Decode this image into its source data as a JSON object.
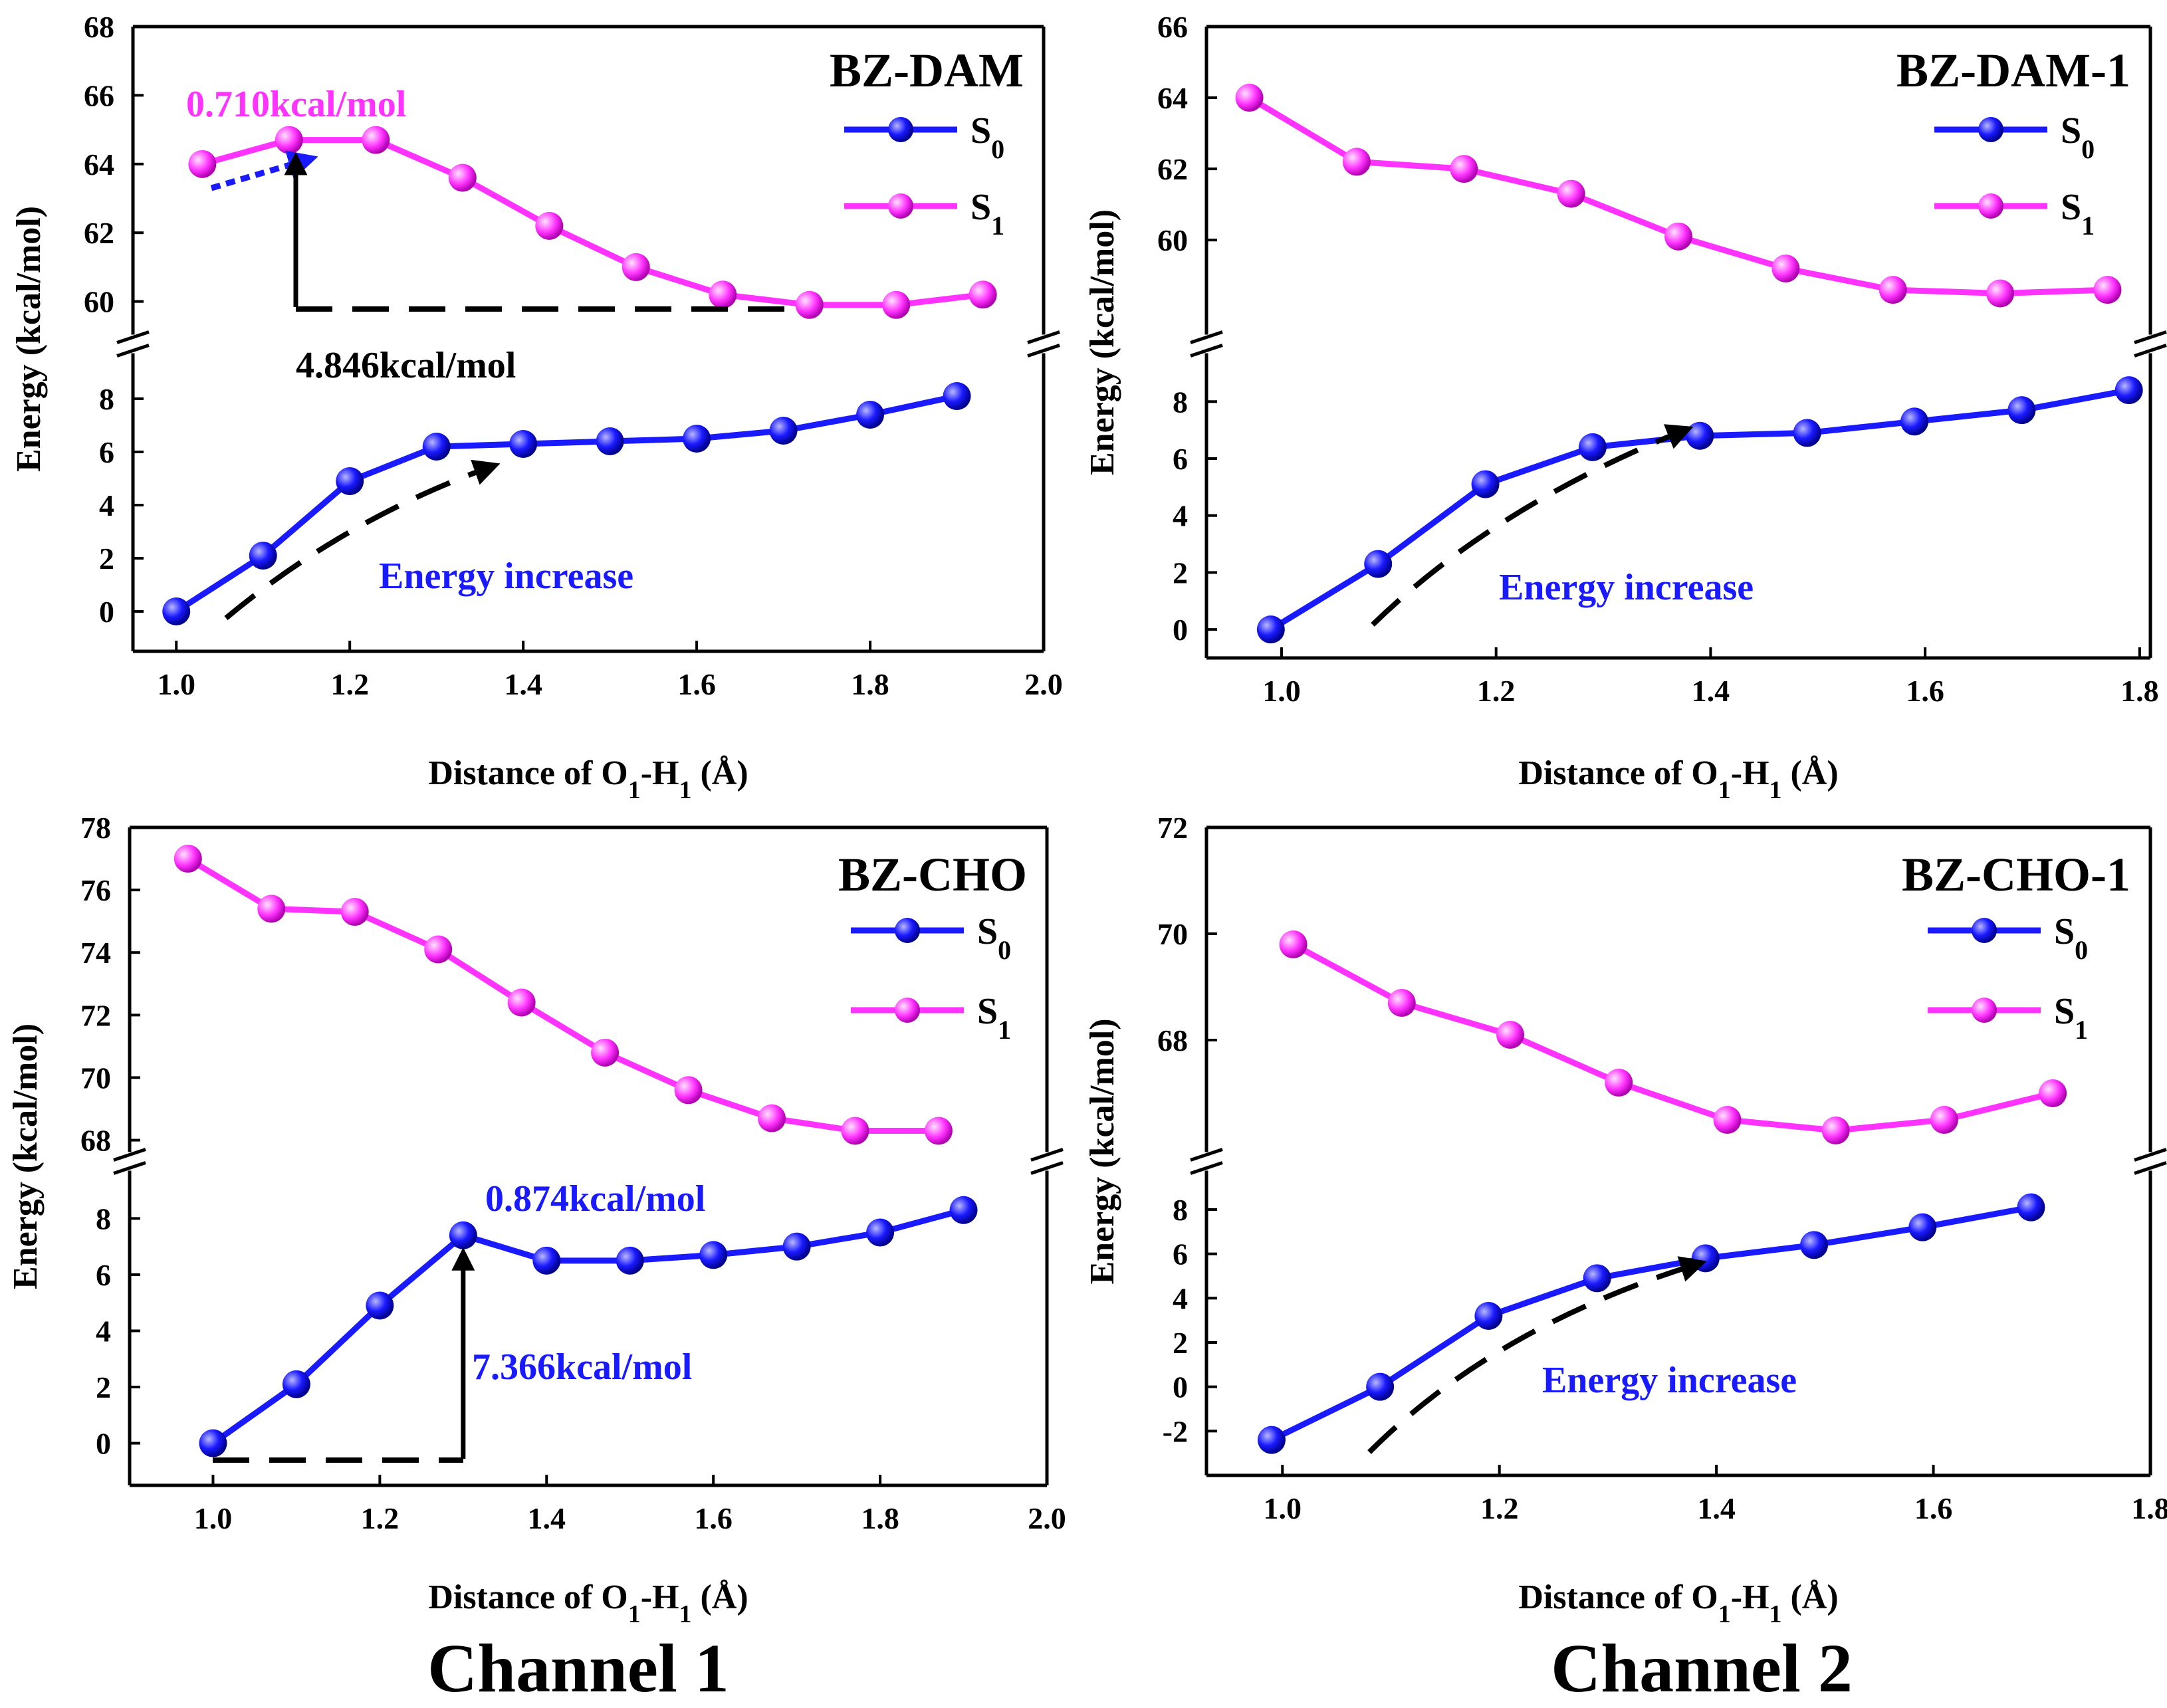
{
  "channel_labels": [
    "Channel 1",
    "Channel 2"
  ],
  "chart_data": [
    {
      "id": "bz-dam",
      "type": "line",
      "title": "BZ-DAM",
      "xlabel": "Distance of O1-H1 (Å)",
      "ylabel": "Energy (kcal/mol)",
      "xlim": [
        0.95,
        2.0
      ],
      "xticks": [
        1.0,
        1.2,
        1.4,
        1.6,
        1.8,
        2.0
      ],
      "xtick_labels": [
        "1.0",
        "1.2",
        "1.4",
        "1.6",
        "1.8",
        "2.0"
      ],
      "upper": {
        "ylim": [
          59.2,
          68
        ],
        "yticks": [
          60,
          62,
          64,
          66,
          68
        ],
        "ytick_labels": [
          "60",
          "62",
          "64",
          "66",
          "68"
        ]
      },
      "lower": {
        "ylim": [
          -1.5,
          9.5
        ],
        "yticks": [
          0,
          2,
          4,
          6,
          8
        ],
        "ytick_labels": [
          "0",
          "2",
          "4",
          "6",
          "8"
        ]
      },
      "series": [
        {
          "name": "S0",
          "color": "#1a1aff",
          "segment": "lower",
          "x": [
            1.0,
            1.1,
            1.2,
            1.3,
            1.4,
            1.5,
            1.6,
            1.7,
            1.8,
            1.9
          ],
          "values": [
            0.0,
            2.1,
            4.9,
            6.2,
            6.3,
            6.4,
            6.5,
            6.8,
            7.4,
            8.1
          ]
        },
        {
          "name": "S1",
          "color": "#ff33ff",
          "segment": "upper",
          "x": [
            1.03,
            1.13,
            1.23,
            1.33,
            1.43,
            1.53,
            1.63,
            1.73,
            1.83,
            1.93
          ],
          "values": [
            64.0,
            64.7,
            64.7,
            63.6,
            62.2,
            61.0,
            60.2,
            59.9,
            59.9,
            60.2
          ]
        }
      ],
      "annotations": [
        {
          "text": "0.710kcal/mol",
          "color": "#ff33ff"
        },
        {
          "text": "4.846kcal/mol",
          "color": "#000000"
        },
        {
          "text": "Energy increase",
          "color": "#1a1aff"
        }
      ]
    },
    {
      "id": "bz-dam-1",
      "type": "line",
      "title": "BZ-DAM-1",
      "xlabel": "Distance of O1-H1 (Å)",
      "ylabel": "Energy (kcal/mol)",
      "xlim": [
        0.93,
        1.81
      ],
      "xticks": [
        1.0,
        1.2,
        1.4,
        1.6,
        1.8
      ],
      "xtick_labels": [
        "1.0",
        "1.2",
        "1.4",
        "1.6",
        "1.8"
      ],
      "upper": {
        "ylim": [
          57.5,
          66
        ],
        "yticks": [
          60,
          62,
          64,
          66
        ],
        "ytick_labels": [
          "60",
          "62",
          "64",
          "66"
        ]
      },
      "lower": {
        "ylim": [
          -1.0,
          9.5
        ],
        "yticks": [
          0,
          2,
          4,
          6,
          8
        ],
        "ytick_labels": [
          "0",
          "2",
          "4",
          "6",
          "8"
        ]
      },
      "series": [
        {
          "name": "S0",
          "color": "#1a1aff",
          "segment": "lower",
          "x": [
            0.99,
            1.09,
            1.19,
            1.29,
            1.39,
            1.49,
            1.59,
            1.69,
            1.79
          ],
          "values": [
            0.0,
            2.3,
            5.1,
            6.4,
            6.8,
            6.9,
            7.3,
            7.7,
            8.4
          ]
        },
        {
          "name": "S1",
          "color": "#ff33ff",
          "segment": "upper",
          "x": [
            0.97,
            1.07,
            1.17,
            1.27,
            1.37,
            1.47,
            1.57,
            1.67,
            1.77
          ],
          "values": [
            64.0,
            62.2,
            62.0,
            61.3,
            60.1,
            59.2,
            58.6,
            58.5,
            58.6
          ]
        }
      ],
      "annotations": [
        {
          "text": "Energy increase",
          "color": "#1a1aff"
        }
      ]
    },
    {
      "id": "bz-cho",
      "type": "line",
      "title": "BZ-CHO",
      "xlabel": "Distance of O1-H1 (Å)",
      "ylabel": "Energy (kcal/mol)",
      "xlim": [
        0.9,
        2.0
      ],
      "xticks": [
        1.0,
        1.2,
        1.4,
        1.6,
        1.8,
        2.0
      ],
      "xtick_labels": [
        "1.0",
        "1.2",
        "1.4",
        "1.6",
        "1.8",
        "2.0"
      ],
      "upper": {
        "ylim": [
          67.8,
          78
        ],
        "yticks": [
          68,
          70,
          72,
          74,
          76,
          78
        ],
        "ytick_labels": [
          "68",
          "70",
          "72",
          "74",
          "76",
          "78"
        ]
      },
      "lower": {
        "ylim": [
          -1.5,
          9.5
        ],
        "yticks": [
          0,
          2,
          4,
          6,
          8
        ],
        "ytick_labels": [
          "0",
          "2",
          "4",
          "6",
          "8"
        ]
      },
      "series": [
        {
          "name": "S0",
          "color": "#1a1aff",
          "segment": "lower",
          "x": [
            1.0,
            1.1,
            1.2,
            1.3,
            1.4,
            1.5,
            1.6,
            1.7,
            1.8,
            1.9
          ],
          "values": [
            0.0,
            2.1,
            4.9,
            7.4,
            6.5,
            6.5,
            6.7,
            7.0,
            7.5,
            8.3
          ]
        },
        {
          "name": "S1",
          "color": "#ff33ff",
          "segment": "upper",
          "x": [
            0.97,
            1.07,
            1.17,
            1.27,
            1.37,
            1.47,
            1.57,
            1.67,
            1.77,
            1.87
          ],
          "values": [
            77.0,
            75.4,
            75.3,
            74.1,
            72.4,
            70.8,
            69.6,
            68.7,
            68.3,
            68.3
          ]
        }
      ],
      "annotations": [
        {
          "text": "0.874kcal/mol",
          "color": "#1a1aff"
        },
        {
          "text": "7.366kcal/mol",
          "color": "#1a1aff"
        }
      ]
    },
    {
      "id": "bz-cho-1",
      "type": "line",
      "title": "BZ-CHO-1",
      "xlabel": "Distance of O1-H1 (Å)",
      "ylabel": "Energy (kcal/mol)",
      "xlim": [
        0.93,
        1.8
      ],
      "xticks": [
        1.0,
        1.2,
        1.4,
        1.6,
        1.8
      ],
      "xtick_labels": [
        "1.0",
        "1.2",
        "1.4",
        "1.6",
        "1.8"
      ],
      "upper": {
        "ylim": [
          66.0,
          72
        ],
        "yticks": [
          68,
          70,
          72
        ],
        "ytick_labels": [
          "68",
          "70",
          "72"
        ]
      },
      "lower": {
        "ylim": [
          -4.0,
          9.5
        ],
        "yticks": [
          -2,
          0,
          2,
          4,
          6,
          8
        ],
        "ytick_labels": [
          "-2",
          "0",
          "2",
          "4",
          "6",
          "8"
        ]
      },
      "series": [
        {
          "name": "S0",
          "color": "#1a1aff",
          "segment": "lower",
          "x": [
            0.99,
            1.09,
            1.19,
            1.29,
            1.39,
            1.49,
            1.59,
            1.69
          ],
          "values": [
            -2.4,
            0.0,
            3.2,
            4.9,
            5.8,
            6.4,
            7.2,
            8.1
          ]
        },
        {
          "name": "S1",
          "color": "#ff33ff",
          "segment": "upper",
          "x": [
            1.01,
            1.11,
            1.21,
            1.31,
            1.41,
            1.51,
            1.61,
            1.71
          ],
          "values": [
            69.8,
            68.7,
            68.1,
            67.2,
            66.5,
            66.3,
            66.5,
            67.0
          ]
        }
      ],
      "annotations": [
        {
          "text": "Energy increase",
          "color": "#1a1aff"
        }
      ]
    }
  ]
}
